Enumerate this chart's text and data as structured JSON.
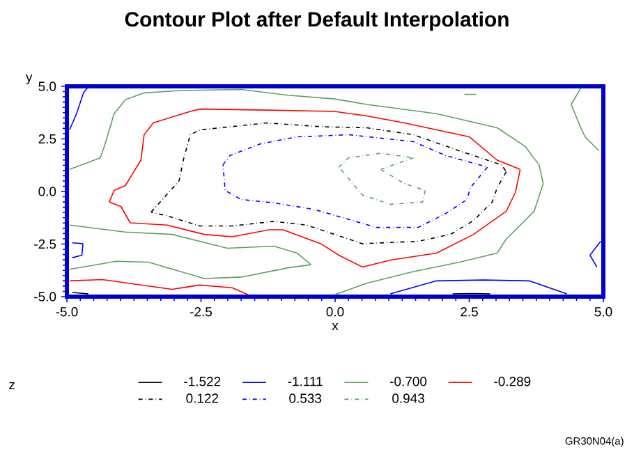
{
  "chart_data": {
    "type": "line",
    "title": "Contour Plot after Default Interpolation",
    "xlabel": "x",
    "ylabel": "y",
    "legend_title": "z",
    "legend": "bottom",
    "marker": "none",
    "xlim": [
      -5,
      5
    ],
    "ylim": [
      -5,
      5
    ],
    "xticks": [
      {
        "value": -5,
        "label": "-5.0"
      },
      {
        "value": -2.5,
        "label": "-2.5"
      },
      {
        "value": 0,
        "label": "0.0"
      },
      {
        "value": 2.5,
        "label": "2.5"
      },
      {
        "value": 5,
        "label": "5.0"
      }
    ],
    "yticks": [
      {
        "value": -5,
        "label": "-5.0"
      },
      {
        "value": -2.5,
        "label": "-2.5"
      },
      {
        "value": 0,
        "label": "0.0"
      },
      {
        "value": 2.5,
        "label": "2.5"
      },
      {
        "value": 5,
        "label": "5.0"
      }
    ],
    "series": [
      {
        "name": "-1.522",
        "color": "#000000",
        "line_style": "solid",
        "x": [
          -4.9,
          -4.6,
          null,
          2.19,
          2.55,
          2.89
        ],
        "values": [
          -4.8,
          -4.87,
          null,
          -4.87,
          -4.85,
          -4.87
        ]
      },
      {
        "name": "-1.111",
        "color": "#0000ff",
        "line_style": "solid",
        "x": [
          -4.95,
          -4.82,
          -4.69,
          -4.6,
          null,
          -4.9,
          -4.7,
          null,
          -4.7,
          -4.72,
          -4.9,
          null,
          1.03,
          1.89,
          2.76,
          3.62,
          4.32,
          null,
          4.95,
          4.75,
          null,
          4.75,
          4.88
        ],
        "values": [
          2.93,
          3.7,
          4.69,
          4.98,
          null,
          -2.44,
          -2.48,
          null,
          -2.48,
          -3.03,
          -3.15,
          null,
          -4.87,
          -4.25,
          -4.21,
          -4.25,
          -4.87,
          null,
          -2.37,
          -3.03,
          null,
          -3.03,
          -3.6
        ]
      },
      {
        "name": "-0.700",
        "color": "#5f9f5f",
        "line_style": "solid",
        "x": [
          -4.95,
          -4.38,
          -4.3,
          -4.12,
          -3.91,
          -3.56,
          -2.87,
          -1.75,
          -0.88,
          -0.01,
          0.59,
          1.89,
          3.02,
          3.54,
          3.8,
          3.88,
          null,
          3.88,
          3.71,
          3.19,
          3.02,
          2.32,
          1.46,
          0.59,
          -0.01,
          null,
          -4.95,
          -3.91,
          -3.04,
          -2.01,
          -1.14,
          -0.71,
          -0.45,
          null,
          -0.45,
          -0.88,
          -1.75,
          -2.44,
          -3.48,
          -4.08,
          -4.95,
          null,
          4.58,
          4.4,
          null,
          4.4,
          4.58,
          4.66,
          4.92,
          null,
          2.41,
          2.63
        ],
        "values": [
          1.05,
          1.6,
          2.15,
          3.7,
          4.36,
          4.69,
          4.8,
          4.85,
          4.58,
          4.4,
          4.14,
          3.7,
          3.03,
          2.15,
          1.27,
          0.38,
          null,
          0.38,
          -0.94,
          -2.26,
          -2.93,
          -3.36,
          -3.81,
          -4.36,
          -4.91,
          null,
          -1.6,
          -1.93,
          -2.04,
          -2.7,
          -2.6,
          -2.93,
          -3.48,
          null,
          -3.48,
          -3.63,
          -4.07,
          -4.14,
          -3.36,
          -3.32,
          -3.7,
          null,
          4.91,
          4.14,
          null,
          4.14,
          3.03,
          2.6,
          1.93,
          null,
          4.62,
          4.62
        ]
      },
      {
        "name": "-0.289",
        "color": "#ff0000",
        "line_style": "solid",
        "x": [
          -4.21,
          -4.12,
          -3.91,
          -3.62,
          -3.56,
          -3.39,
          -2.7,
          -2.52,
          -1.27,
          -0.01,
          0.59,
          1.29,
          2.5,
          3.02,
          3.45,
          null,
          3.45,
          3.36,
          3.19,
          2.58,
          1.89,
          1.03,
          0.51,
          0.07,
          -0.27,
          -0.97,
          -1.23,
          -1.92,
          -2.44,
          -3.13,
          -3.82,
          -3.99,
          -4.21,
          null,
          -4.95,
          -4.34,
          -3.04,
          -2.52,
          -1.92,
          -1.62
        ],
        "values": [
          -0.5,
          0.05,
          0.28,
          1.49,
          2.7,
          3.26,
          3.81,
          3.92,
          3.87,
          3.81,
          3.59,
          3.26,
          2.6,
          1.49,
          1.05,
          null,
          1.05,
          -0.05,
          -0.94,
          -2.04,
          -2.93,
          -3.26,
          -3.59,
          -3.03,
          -2.48,
          -1.82,
          -1.82,
          -2.15,
          -2.04,
          -1.6,
          -1.49,
          -0.72,
          -0.5,
          null,
          -4.25,
          -4.19,
          -4.65,
          -4.45,
          -4.58,
          -4.91
        ]
      },
      {
        "name": "0.122",
        "color": "#000000",
        "line_style": "dashed",
        "x": [
          -3.43,
          -2.91,
          -2.83,
          -2.7,
          -2.52,
          -1.27,
          -0.27,
          0.59,
          1.46,
          2.32,
          3.1,
          3.19,
          null,
          3.19,
          3.02,
          2.93,
          2.58,
          2.15,
          1.55,
          0.51,
          -0.27,
          -0.53,
          -1.14,
          -1.92,
          -2.52,
          -3.13,
          -3.43
        ],
        "values": [
          -0.98,
          0.5,
          1.49,
          2.7,
          2.93,
          3.26,
          3.08,
          3.03,
          2.7,
          1.93,
          1.27,
          0.94,
          null,
          0.94,
          0.17,
          -0.5,
          -1.38,
          -2.04,
          -2.37,
          -2.48,
          -1.82,
          -1.6,
          -1.42,
          -1.64,
          -1.64,
          -1.16,
          -0.98
        ]
      },
      {
        "name": "0.533",
        "color": "#0000ff",
        "line_style": "dashed",
        "x": [
          -2.09,
          -1.96,
          -1.4,
          -0.71,
          -0.27,
          0.25,
          1.46,
          2.06,
          2.84,
          null,
          2.84,
          2.52,
          2.46,
          2.06,
          1.55,
          0.77,
          -0.27,
          -0.45,
          -1.14,
          -1.75,
          -2.05,
          -2.09
        ],
        "values": [
          1.27,
          1.71,
          2.26,
          2.6,
          2.64,
          2.7,
          2.37,
          1.71,
          1.16,
          null,
          1.16,
          0.17,
          -0.38,
          -1.05,
          -1.71,
          -1.71,
          -0.94,
          -0.83,
          -0.54,
          -0.38,
          0.05,
          1.27
        ]
      },
      {
        "name": "0.943",
        "color": "#5f9f5f",
        "line_style": "dashed",
        "x": [
          0.07,
          0.25,
          0.85,
          1.46,
          null,
          1.46,
          0.85,
          null,
          0.85,
          1.29,
          1.68,
          null,
          1.68,
          1.63,
          1.03,
          0.51,
          0.07
        ],
        "values": [
          1.16,
          1.6,
          1.82,
          1.6,
          null,
          1.6,
          1.05,
          null,
          1.05,
          0.38,
          0.05,
          null,
          0.05,
          -0.5,
          -0.61,
          -0.17,
          1.16
        ]
      }
    ],
    "annotations": [
      "GR30N04(a)"
    ]
  }
}
